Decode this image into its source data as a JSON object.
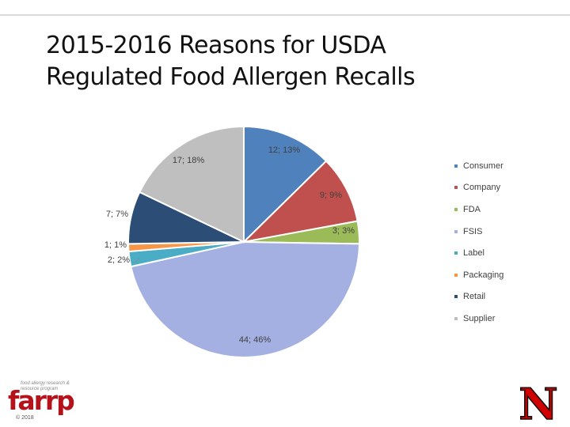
{
  "title_line1": "2015-2016 Reasons for USDA",
  "title_line2": "Regulated Food Allergen Recalls",
  "chart_data": {
    "type": "pie",
    "slices": [
      {
        "name": "Consumer",
        "value": 12,
        "label": "12; 13%",
        "color": "#4f81bd"
      },
      {
        "name": "Company",
        "value": 9,
        "label": "9; 9%",
        "color": "#c0504d"
      },
      {
        "name": "FDA",
        "value": 3,
        "label": "3; 3%",
        "color": "#9bbb59"
      },
      {
        "name": "FSIS",
        "value": 44,
        "label": "44; 46%",
        "color": "#a4b0e2"
      },
      {
        "name": "Label",
        "value": 2,
        "label": "2; 2%",
        "color": "#4bacc6"
      },
      {
        "name": "Packaging",
        "value": 1,
        "label": "1; 1%",
        "color": "#f79646"
      },
      {
        "name": "Retail",
        "value": 7,
        "label": "7; 7%",
        "color": "#2c4d75"
      },
      {
        "name": "Supplier",
        "value": 17,
        "label": "17; 18%",
        "color": "#bfbfbf"
      }
    ],
    "legend_position": "right"
  },
  "farrp": {
    "tagline": "food allergy research & resource program",
    "wordmark": "farrp",
    "copyright": "© 2018"
  },
  "n_logo": {
    "letter": "N",
    "color": "#d00000"
  }
}
